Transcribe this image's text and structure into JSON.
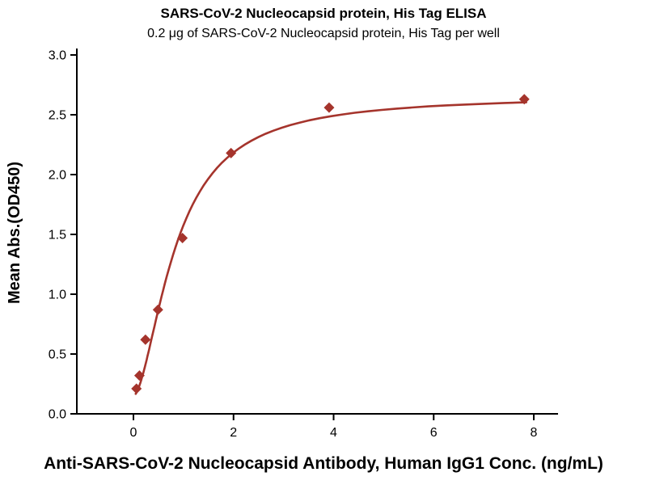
{
  "chart_data": {
    "type": "scatter",
    "title": "SARS-CoV-2 Nucleocapsid protein, His Tag ELISA",
    "subtitle": "0.2 μg of SARS-CoV-2 Nucleocapsid protein, His Tag per well",
    "xlabel": "Anti-SARS-CoV-2 Nucleocapsid Antibody, Human IgG1 Conc. (ng/mL)",
    "ylabel": "Mean Abs.(OD450)",
    "xlim": [
      -1.1,
      8.5
    ],
    "ylim": [
      0.0,
      3.0
    ],
    "x_ticks": [
      0,
      2,
      4,
      6,
      8
    ],
    "y_ticks": [
      0.0,
      0.5,
      1.0,
      1.5,
      2.0,
      2.5,
      3.0
    ],
    "points": {
      "x": [
        0.06,
        0.12,
        0.24,
        0.49,
        0.98,
        1.95,
        3.91,
        7.81
      ],
      "y": [
        0.21,
        0.32,
        0.62,
        0.87,
        1.47,
        2.18,
        2.56,
        2.63
      ]
    },
    "fit": {
      "model": "4PL",
      "a": 0.15,
      "b": 1.7,
      "c": 0.85,
      "d": 2.66
    },
    "marker": {
      "shape": "diamond",
      "color": "#a5342c"
    },
    "line_color": "#a5342c",
    "axis_color": "#000000",
    "grid": false,
    "legend": null
  }
}
